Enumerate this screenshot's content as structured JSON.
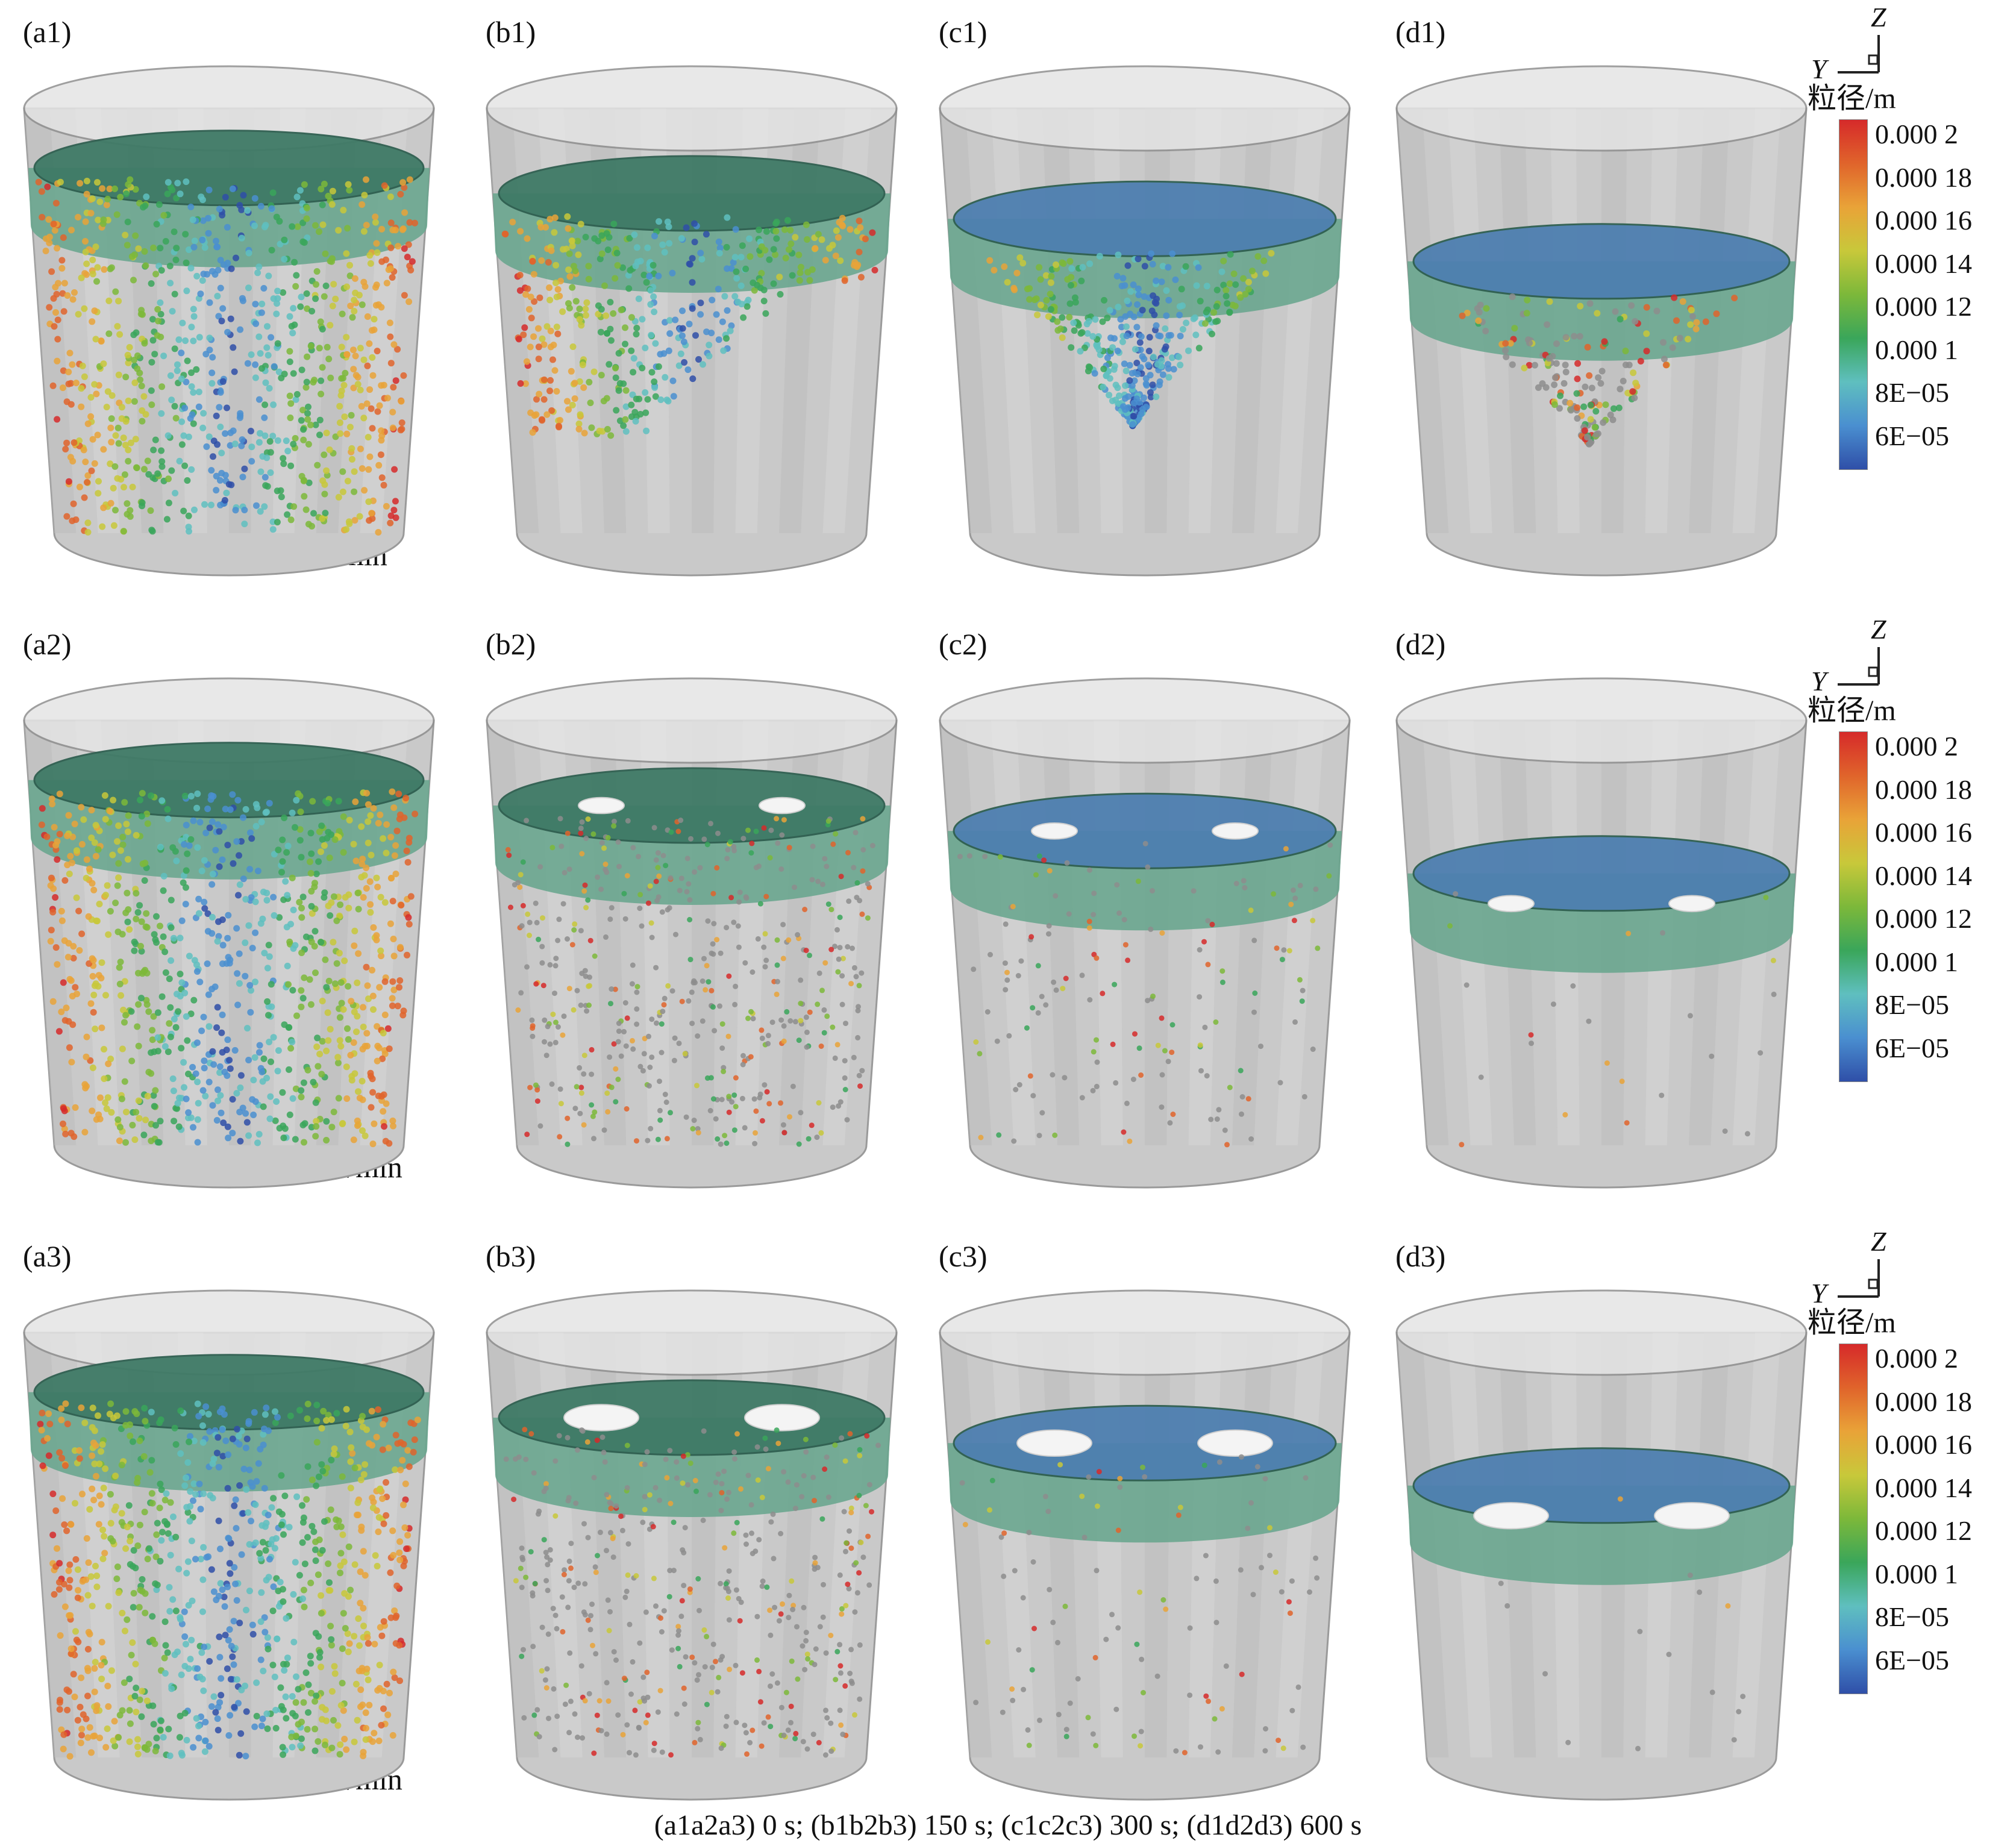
{
  "rows": [
    {
      "caption": "0 L/min",
      "labels": [
        "(a1)",
        "(b1)",
        "(c1)",
        "(d1)"
      ]
    },
    {
      "caption": "100 L/min",
      "labels": [
        "(a2)",
        "(b2)",
        "(c2)",
        "(d2)"
      ]
    },
    {
      "caption": "350 L/min",
      "labels": [
        "(a3)",
        "(b3)",
        "(c3)",
        "(d3)"
      ]
    }
  ],
  "bottom_caption": "(a1a2a3) 0 s; (b1b2b3) 150 s; (c1c2c3) 300 s; (d1d2d3) 600 s",
  "legend": {
    "title": "粒径/m",
    "ticks": [
      "0.000 2",
      "0.000 18",
      "0.000 16",
      "0.000 14",
      "0.000 12",
      "0.000 1",
      "8E−05",
      "6E−05"
    ],
    "colors": [
      "#d62a2a",
      "#e0642b",
      "#e9a338",
      "#c8c83a",
      "#7cb83a",
      "#3aa65a",
      "#5fbfbf",
      "#4a8fd0",
      "#2f4fa8"
    ]
  },
  "axes": {
    "z": "Z",
    "y": "Y"
  },
  "colors": {
    "liquid_surface": "#3f7a66",
    "liquid_band": "#6aa68f",
    "tank_wall": "#c9c9c9",
    "bubble_top": "#4e7fb0"
  }
}
